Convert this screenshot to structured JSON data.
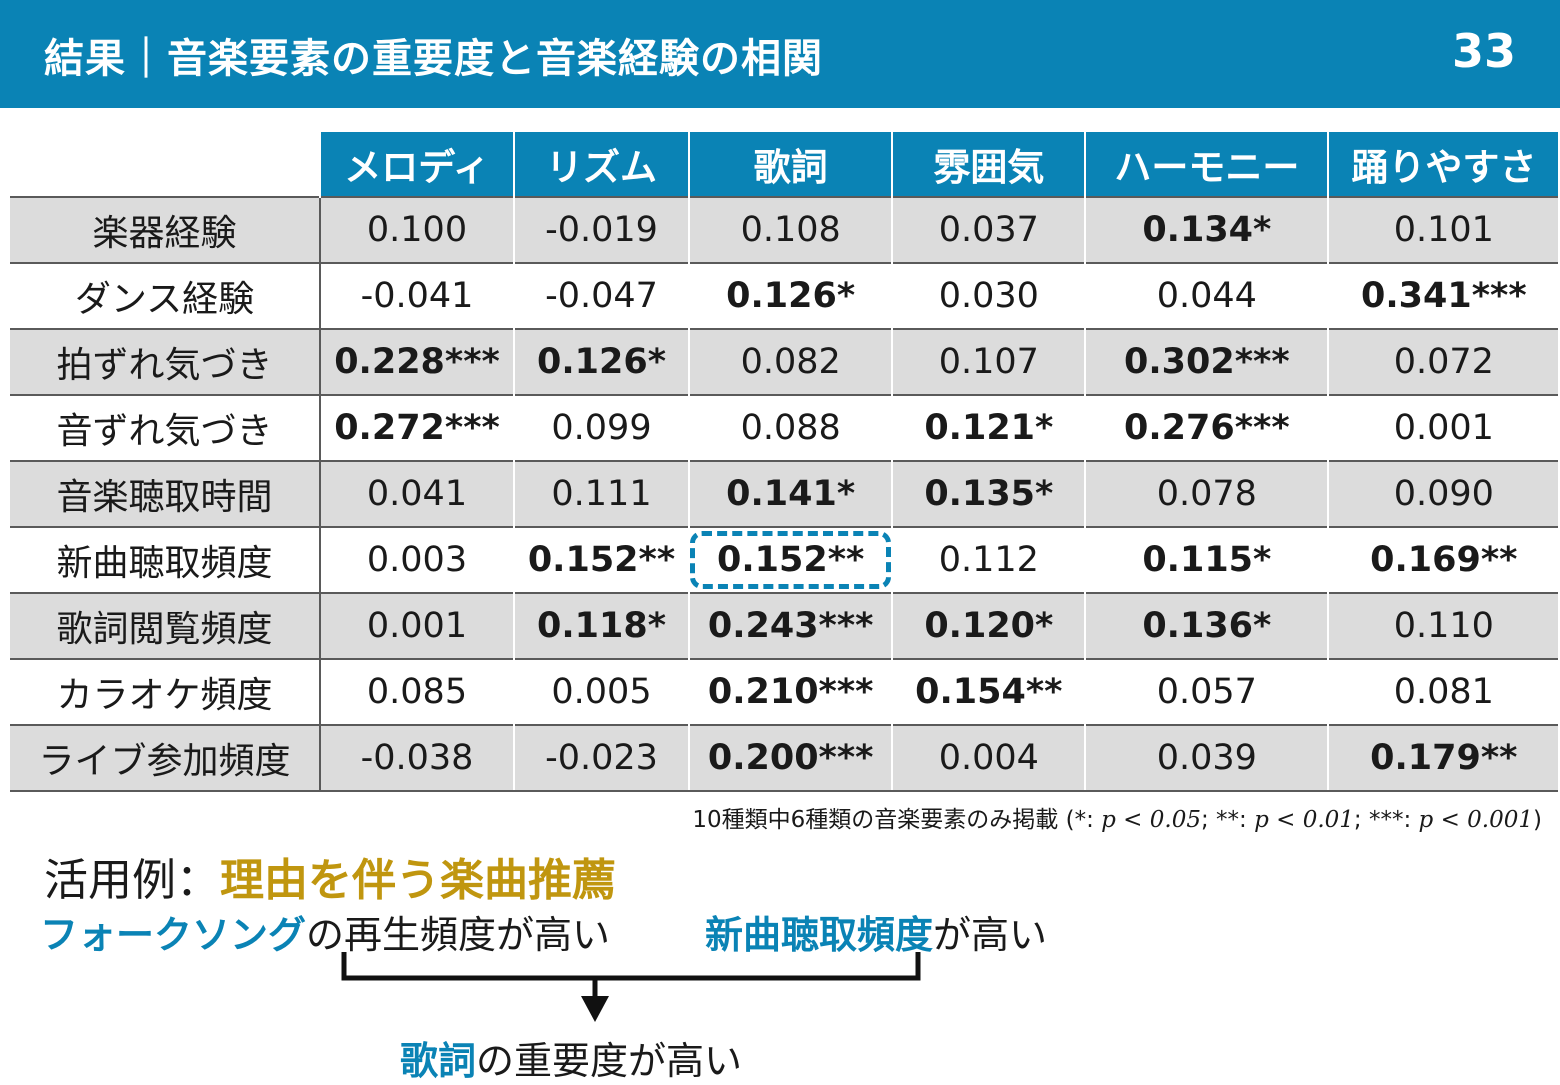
{
  "header": {
    "title": "結果｜音楽要素の重要度と音楽経験の相関",
    "page_number": "33"
  },
  "table": {
    "columns": [
      "メロディ",
      "リズム",
      "歌詞",
      "雰囲気",
      "ハーモニー",
      "踊りやすさ"
    ],
    "rows": [
      {
        "label": "楽器経験",
        "cells": [
          {
            "v": "0.100",
            "b": false
          },
          {
            "v": "-0.019",
            "b": false
          },
          {
            "v": "0.108",
            "b": false
          },
          {
            "v": "0.037",
            "b": false
          },
          {
            "v": "0.134*",
            "b": true
          },
          {
            "v": "0.101",
            "b": false
          }
        ]
      },
      {
        "label": "ダンス経験",
        "cells": [
          {
            "v": "-0.041",
            "b": false
          },
          {
            "v": "-0.047",
            "b": false
          },
          {
            "v": "0.126*",
            "b": true
          },
          {
            "v": "0.030",
            "b": false
          },
          {
            "v": "0.044",
            "b": false
          },
          {
            "v": "0.341***",
            "b": true
          }
        ]
      },
      {
        "label": "拍ずれ気づき",
        "cells": [
          {
            "v": "0.228***",
            "b": true
          },
          {
            "v": "0.126*",
            "b": true
          },
          {
            "v": "0.082",
            "b": false
          },
          {
            "v": "0.107",
            "b": false
          },
          {
            "v": "0.302***",
            "b": true
          },
          {
            "v": "0.072",
            "b": false
          }
        ]
      },
      {
        "label": "音ずれ気づき",
        "cells": [
          {
            "v": "0.272***",
            "b": true
          },
          {
            "v": "0.099",
            "b": false
          },
          {
            "v": "0.088",
            "b": false
          },
          {
            "v": "0.121*",
            "b": true
          },
          {
            "v": "0.276***",
            "b": true
          },
          {
            "v": "0.001",
            "b": false
          }
        ]
      },
      {
        "label": "音楽聴取時間",
        "cells": [
          {
            "v": "0.041",
            "b": false
          },
          {
            "v": "0.111",
            "b": false
          },
          {
            "v": "0.141*",
            "b": true
          },
          {
            "v": "0.135*",
            "b": true
          },
          {
            "v": "0.078",
            "b": false
          },
          {
            "v": "0.090",
            "b": false
          }
        ]
      },
      {
        "label": "新曲聴取頻度",
        "cells": [
          {
            "v": "0.003",
            "b": false
          },
          {
            "v": "0.152**",
            "b": true
          },
          {
            "v": "0.152**",
            "b": true,
            "hl": true
          },
          {
            "v": "0.112",
            "b": false
          },
          {
            "v": "0.115*",
            "b": true
          },
          {
            "v": "0.169**",
            "b": true
          }
        ]
      },
      {
        "label": "歌詞閲覧頻度",
        "cells": [
          {
            "v": "0.001",
            "b": false
          },
          {
            "v": "0.118*",
            "b": true
          },
          {
            "v": "0.243***",
            "b": true
          },
          {
            "v": "0.120*",
            "b": true
          },
          {
            "v": "0.136*",
            "b": true
          },
          {
            "v": "0.110",
            "b": false
          }
        ]
      },
      {
        "label": "カラオケ頻度",
        "cells": [
          {
            "v": "0.085",
            "b": false
          },
          {
            "v": "0.005",
            "b": false
          },
          {
            "v": "0.210***",
            "b": true
          },
          {
            "v": "0.154**",
            "b": true
          },
          {
            "v": "0.057",
            "b": false
          },
          {
            "v": "0.081",
            "b": false
          }
        ]
      },
      {
        "label": "ライブ参加頻度",
        "cells": [
          {
            "v": "-0.038",
            "b": false
          },
          {
            "v": "-0.023",
            "b": false
          },
          {
            "v": "0.200***",
            "b": true
          },
          {
            "v": "0.004",
            "b": false
          },
          {
            "v": "0.039",
            "b": false
          },
          {
            "v": "0.179**",
            "b": true
          }
        ]
      }
    ]
  },
  "note": {
    "prefix": "10種類中6種類の音楽要素のみ掲載 (*: ",
    "p1": "p < 0.05",
    "mid1": "; **: ",
    "p2": "p < 0.01",
    "mid2": "; ***: ",
    "p3": "p < 0.001",
    "suffix": ")"
  },
  "application": {
    "label": "活用例：",
    "title": "理由を伴う楽曲推薦",
    "cond1_highlight": "フォークソング",
    "cond1_rest": "の再生頻度が高い",
    "cond2_highlight": "新曲聴取頻度",
    "cond2_rest": "が高い",
    "result_highlight": "歌詞",
    "result_rest": "の重要度が高い"
  }
}
